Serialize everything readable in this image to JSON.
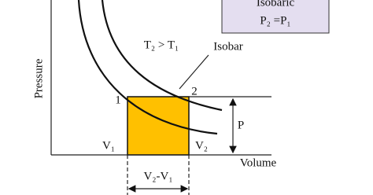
{
  "box": {
    "title": "Isobaric",
    "equation": "P₂ =P₁"
  },
  "labels": {
    "temperature": "T₂ > T₁",
    "isobar": "Isobar",
    "y_axis": "Pressure",
    "x_axis": "Volume",
    "point1": "1",
    "point2": "2",
    "pressure": "P",
    "v1": "V₁",
    "v2": "V₂",
    "delta_v": "V₂-V₁"
  }
}
